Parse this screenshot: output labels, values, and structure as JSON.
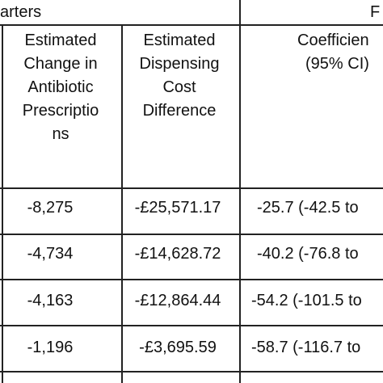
{
  "table": {
    "group_headers": [
      "arters",
      "F"
    ],
    "column_headers": [
      [
        "Estimated",
        "Change in",
        "Antibiotic",
        "Prescriptio",
        "ns"
      ],
      [
        "Estimated",
        "Dispensing",
        "Cost",
        "Difference"
      ],
      [
        "Coefficien",
        "(95% CI)"
      ]
    ],
    "rows": [
      [
        "-8,275",
        "-£25,571.17",
        "-25.7 (-42.5 to"
      ],
      [
        "-4,734",
        "-£14,628.72",
        "-40.2 (-76.8 to"
      ],
      [
        "-4,163",
        "-£12,864.44",
        "-54.2 (-101.5 to"
      ],
      [
        "-1,196",
        "-£3,695.59",
        "-58.7 (-116.7 to"
      ]
    ]
  }
}
